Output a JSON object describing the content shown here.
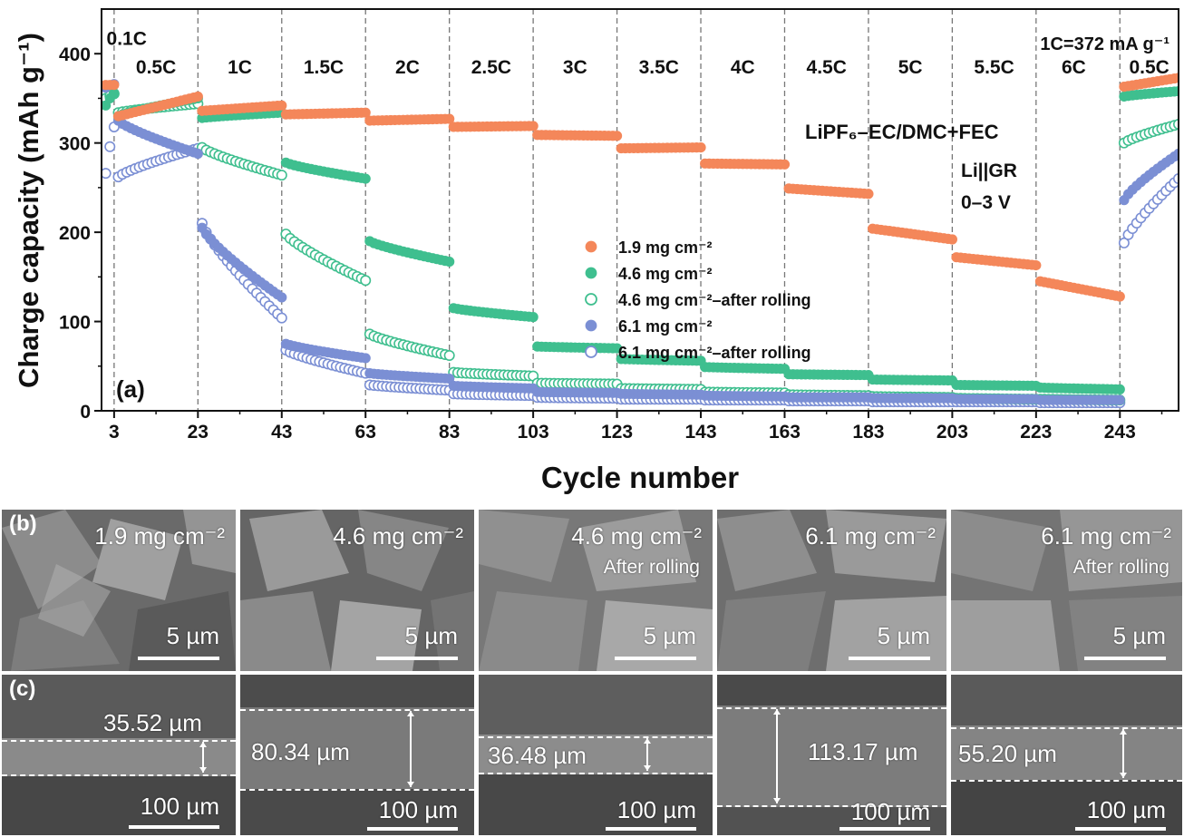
{
  "chart_data": {
    "type": "scatter",
    "panel_label": "(a)",
    "xlabel": "Cycle number",
    "ylabel": "Charge capacity (mAh g⁻¹)",
    "xlim": [
      0,
      257
    ],
    "ylim": [
      0,
      450
    ],
    "xticks": [
      3,
      23,
      43,
      63,
      83,
      103,
      123,
      143,
      163,
      183,
      203,
      223,
      243
    ],
    "yticks": [
      0,
      100,
      200,
      300,
      400
    ],
    "rate_boundaries": [
      3,
      23,
      43,
      63,
      83,
      103,
      123,
      143,
      163,
      183,
      203,
      223,
      243
    ],
    "rates": [
      {
        "label": "0.1C",
        "from": 1,
        "to": 3,
        "label_x": 6,
        "label_y": 418
      },
      {
        "label": "0.5C",
        "from": 4,
        "to": 23,
        "label_x": 13,
        "label_y": 386
      },
      {
        "label": "1C",
        "from": 24,
        "to": 43,
        "label_x": 33,
        "label_y": 386
      },
      {
        "label": "1.5C",
        "from": 44,
        "to": 63,
        "label_x": 53,
        "label_y": 386
      },
      {
        "label": "2C",
        "from": 64,
        "to": 83,
        "label_x": 73,
        "label_y": 386
      },
      {
        "label": "2.5C",
        "from": 84,
        "to": 103,
        "label_x": 93,
        "label_y": 386
      },
      {
        "label": "3C",
        "from": 104,
        "to": 123,
        "label_x": 113,
        "label_y": 386
      },
      {
        "label": "3.5C",
        "from": 124,
        "to": 143,
        "label_x": 133,
        "label_y": 386
      },
      {
        "label": "4C",
        "from": 144,
        "to": 163,
        "label_x": 153,
        "label_y": 386
      },
      {
        "label": "4.5C",
        "from": 164,
        "to": 183,
        "label_x": 173,
        "label_y": 386
      },
      {
        "label": "5C",
        "from": 184,
        "to": 203,
        "label_x": 193,
        "label_y": 386
      },
      {
        "label": "5.5C",
        "from": 204,
        "to": 223,
        "label_x": 213,
        "label_y": 386
      },
      {
        "label": "6C",
        "from": 224,
        "to": 243,
        "label_x": 232,
        "label_y": 386
      },
      {
        "label": "0.5C",
        "from": 244,
        "to": 257,
        "label_x": 250,
        "label_y": 386
      }
    ],
    "annotations": {
      "rate_def": "1C=372 mA g⁻¹",
      "electrolyte": "LiPF₆–EC/DMC+FEC",
      "cell": "Li||GR",
      "voltage": "0–3 V"
    },
    "legend_position": "center",
    "series": [
      {
        "name": "1.9 mg cm⁻²",
        "color": "#F4875A",
        "filled": true,
        "segments": [
          {
            "from": 1,
            "to": 3,
            "start": 365,
            "end": 365
          },
          {
            "from": 4,
            "to": 23,
            "start": 330,
            "end": 352
          },
          {
            "from": 24,
            "to": 43,
            "start": 336,
            "end": 342
          },
          {
            "from": 44,
            "to": 63,
            "start": 332,
            "end": 334
          },
          {
            "from": 64,
            "to": 83,
            "start": 325,
            "end": 327
          },
          {
            "from": 84,
            "to": 103,
            "start": 318,
            "end": 319
          },
          {
            "from": 104,
            "to": 123,
            "start": 309,
            "end": 308
          },
          {
            "from": 124,
            "to": 143,
            "start": 294,
            "end": 295
          },
          {
            "from": 144,
            "to": 163,
            "start": 277,
            "end": 276
          },
          {
            "from": 164,
            "to": 183,
            "start": 249,
            "end": 243
          },
          {
            "from": 184,
            "to": 203,
            "start": 204,
            "end": 192
          },
          {
            "from": 204,
            "to": 223,
            "start": 172,
            "end": 163
          },
          {
            "from": 224,
            "to": 243,
            "start": 145,
            "end": 128
          },
          {
            "from": 244,
            "to": 257,
            "start": 363,
            "end": 373
          }
        ]
      },
      {
        "name": "4.6 mg cm⁻²",
        "color": "#3FBF8F",
        "filled": true,
        "segments": [
          {
            "from": 1,
            "to": 3,
            "start": 342,
            "end": 356
          },
          {
            "from": 4,
            "to": 23,
            "start": 330,
            "end": 350
          },
          {
            "from": 24,
            "to": 43,
            "start": 328,
            "end": 334
          },
          {
            "from": 44,
            "to": 63,
            "start": 278,
            "end": 260
          },
          {
            "from": 64,
            "to": 83,
            "start": 190,
            "end": 167
          },
          {
            "from": 84,
            "to": 103,
            "start": 115,
            "end": 105
          },
          {
            "from": 104,
            "to": 123,
            "start": 72,
            "end": 70
          },
          {
            "from": 124,
            "to": 143,
            "start": 58,
            "end": 56
          },
          {
            "from": 144,
            "to": 163,
            "start": 49,
            "end": 47
          },
          {
            "from": 164,
            "to": 183,
            "start": 41,
            "end": 40
          },
          {
            "from": 184,
            "to": 203,
            "start": 35,
            "end": 34
          },
          {
            "from": 204,
            "to": 223,
            "start": 29,
            "end": 28
          },
          {
            "from": 224,
            "to": 243,
            "start": 26,
            "end": 24
          },
          {
            "from": 244,
            "to": 257,
            "start": 352,
            "end": 358
          }
        ]
      },
      {
        "name": "4.6 mg cm⁻²–after rolling",
        "color": "#3FBF8F",
        "filled": false,
        "segments": [
          {
            "from": 1,
            "to": 3,
            "start": 350,
            "end": 355
          },
          {
            "from": 4,
            "to": 23,
            "start": 334,
            "end": 344
          },
          {
            "from": 24,
            "to": 43,
            "start": 295,
            "end": 264
          },
          {
            "from": 44,
            "to": 63,
            "start": 198,
            "end": 146
          },
          {
            "from": 64,
            "to": 83,
            "start": 86,
            "end": 62
          },
          {
            "from": 84,
            "to": 103,
            "start": 43,
            "end": 39
          },
          {
            "from": 104,
            "to": 123,
            "start": 31,
            "end": 30
          },
          {
            "from": 124,
            "to": 143,
            "start": 25,
            "end": 24
          },
          {
            "from": 144,
            "to": 163,
            "start": 21,
            "end": 20
          },
          {
            "from": 164,
            "to": 183,
            "start": 18,
            "end": 17
          },
          {
            "from": 184,
            "to": 203,
            "start": 16,
            "end": 15
          },
          {
            "from": 204,
            "to": 223,
            "start": 14,
            "end": 13
          },
          {
            "from": 224,
            "to": 243,
            "start": 13,
            "end": 12
          },
          {
            "from": 244,
            "to": 257,
            "start": 300,
            "end": 321
          }
        ]
      },
      {
        "name": "6.1 mg cm⁻²",
        "color": "#7B8FD4",
        "filled": true,
        "segments": [
          {
            "from": 1,
            "to": 3,
            "start": 362,
            "end": 366
          },
          {
            "from": 4,
            "to": 23,
            "start": 325,
            "end": 288
          },
          {
            "from": 24,
            "to": 43,
            "start": 205,
            "end": 127
          },
          {
            "from": 44,
            "to": 63,
            "start": 75,
            "end": 59
          },
          {
            "from": 64,
            "to": 83,
            "start": 42,
            "end": 36
          },
          {
            "from": 84,
            "to": 103,
            "start": 28,
            "end": 25
          },
          {
            "from": 104,
            "to": 123,
            "start": 21,
            "end": 20
          },
          {
            "from": 124,
            "to": 143,
            "start": 19,
            "end": 18
          },
          {
            "from": 144,
            "to": 163,
            "start": 17,
            "end": 16
          },
          {
            "from": 164,
            "to": 183,
            "start": 15,
            "end": 15
          },
          {
            "from": 184,
            "to": 203,
            "start": 14,
            "end": 14
          },
          {
            "from": 204,
            "to": 223,
            "start": 13,
            "end": 13
          },
          {
            "from": 224,
            "to": 243,
            "start": 12,
            "end": 12
          },
          {
            "from": 244,
            "to": 257,
            "start": 236,
            "end": 288
          }
        ]
      },
      {
        "name": "6.1 mg cm⁻²–after rolling",
        "color": "#7B8FD4",
        "filled": false,
        "segments": [
          {
            "from": 1,
            "to": 3,
            "start": 266,
            "end": 318
          },
          {
            "from": 4,
            "to": 23,
            "start": 262,
            "end": 294
          },
          {
            "from": 24,
            "to": 43,
            "start": 210,
            "end": 104
          },
          {
            "from": 44,
            "to": 63,
            "start": 68,
            "end": 42
          },
          {
            "from": 64,
            "to": 83,
            "start": 29,
            "end": 23
          },
          {
            "from": 84,
            "to": 103,
            "start": 19,
            "end": 17
          },
          {
            "from": 104,
            "to": 123,
            "start": 15,
            "end": 14
          },
          {
            "from": 124,
            "to": 143,
            "start": 13,
            "end": 13
          },
          {
            "from": 144,
            "to": 163,
            "start": 12,
            "end": 12
          },
          {
            "from": 164,
            "to": 183,
            "start": 11,
            "end": 11
          },
          {
            "from": 184,
            "to": 203,
            "start": 10,
            "end": 10
          },
          {
            "from": 204,
            "to": 223,
            "start": 10,
            "end": 10
          },
          {
            "from": 224,
            "to": 243,
            "start": 9,
            "end": 9
          },
          {
            "from": 244,
            "to": 257,
            "start": 188,
            "end": 260
          }
        ]
      }
    ]
  },
  "sem_top": {
    "panel_label": "(b)",
    "tiles": [
      {
        "loading": "1.9 mg cm⁻²",
        "note": "",
        "scale": "5 µm"
      },
      {
        "loading": "4.6 mg cm⁻²",
        "note": "",
        "scale": "5 µm"
      },
      {
        "loading": "4.6 mg cm⁻²",
        "note": "After rolling",
        "scale": "5 µm"
      },
      {
        "loading": "6.1 mg cm⁻²",
        "note": "",
        "scale": "5 µm"
      },
      {
        "loading": "6.1 mg cm⁻²",
        "note": "After rolling",
        "scale": "5 µm"
      }
    ]
  },
  "sem_cross": {
    "panel_label": "(c)",
    "tiles": [
      {
        "thickness": "35.52 µm",
        "scale": "100 µm"
      },
      {
        "thickness": "80.34 µm",
        "scale": "100 µm"
      },
      {
        "thickness": "36.48 µm",
        "scale": "100 µm"
      },
      {
        "thickness": "113.17 µm",
        "scale": "100 µm"
      },
      {
        "thickness": "55.20 µm",
        "scale": "100 µm"
      }
    ]
  }
}
